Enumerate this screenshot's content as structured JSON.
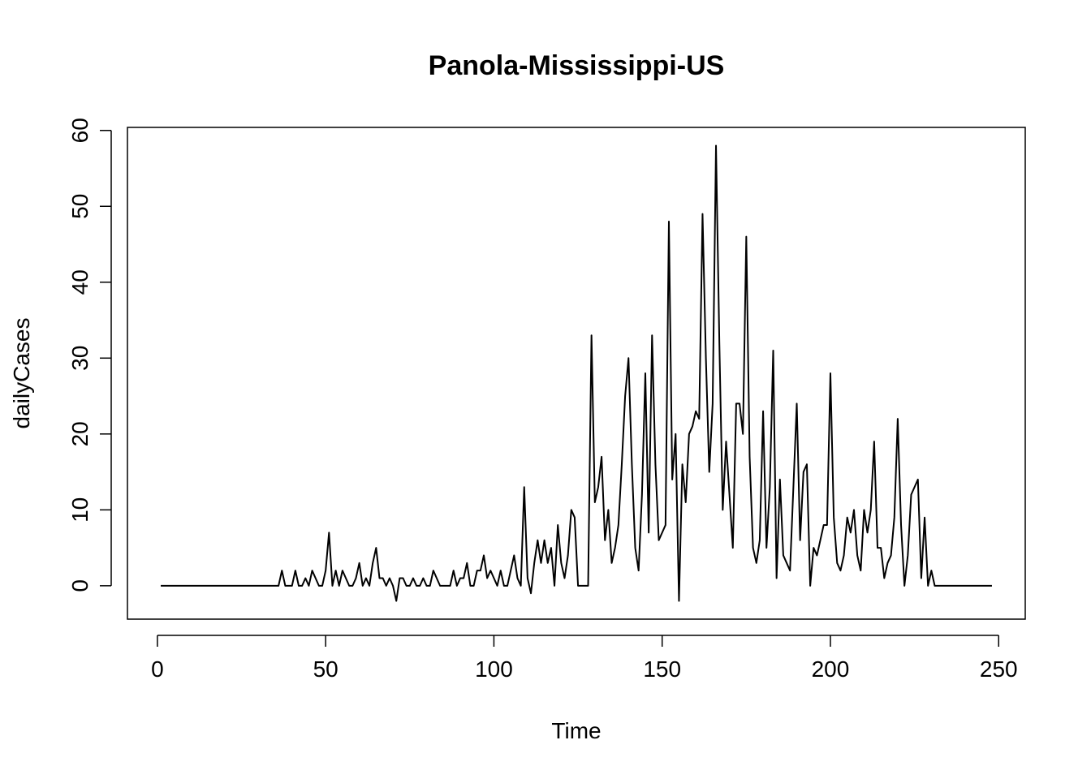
{
  "chart_data": {
    "type": "line",
    "title": "Panola-Mississippi-US",
    "xlabel": "Time",
    "ylabel": "dailyCases",
    "xlim": [
      -8.9,
      257.9
    ],
    "ylim": [
      -4.4,
      60.4
    ],
    "xticks": [
      0,
      50,
      100,
      150,
      200,
      250
    ],
    "yticks": [
      0,
      10,
      20,
      30,
      40,
      50,
      60
    ],
    "grid": false,
    "legend": "none",
    "line_color": "#000000",
    "x_start": 1,
    "series": [
      {
        "values": [
          0,
          0,
          0,
          0,
          0,
          0,
          0,
          0,
          0,
          0,
          0,
          0,
          0,
          0,
          0,
          0,
          0,
          0,
          0,
          0,
          0,
          0,
          0,
          0,
          0,
          0,
          0,
          0,
          0,
          0,
          0,
          0,
          0,
          0,
          0,
          0,
          2,
          0,
          0,
          0,
          2,
          0,
          0,
          1,
          0,
          2,
          1,
          0,
          0,
          2,
          7,
          0,
          2,
          0,
          2,
          1,
          0,
          0,
          1,
          3,
          0,
          1,
          0,
          3,
          5,
          1,
          1,
          0,
          1,
          0,
          -2,
          1,
          1,
          0,
          0,
          1,
          0,
          0,
          1,
          0,
          0,
          2,
          1,
          0,
          0,
          0,
          0,
          2,
          0,
          1,
          1,
          3,
          0,
          0,
          2,
          2,
          4,
          1,
          2,
          1,
          0,
          2,
          0,
          0,
          2,
          4,
          1,
          0,
          13,
          1,
          -1,
          3,
          6,
          3,
          6,
          3,
          5,
          0,
          8,
          3,
          1,
          4,
          10,
          9,
          0,
          0,
          0,
          0,
          33,
          11,
          13,
          17,
          6,
          10,
          3,
          5,
          8,
          16,
          25,
          30,
          16,
          5,
          2,
          12,
          28,
          7,
          33,
          16,
          6,
          7,
          8,
          48,
          14,
          20,
          -2,
          16,
          11,
          20,
          21,
          23,
          22,
          49,
          30,
          15,
          24,
          58,
          32,
          10,
          19,
          12,
          5,
          24,
          24,
          20,
          46,
          17,
          5,
          3,
          6,
          23,
          5,
          13,
          31,
          1,
          14,
          4,
          3,
          2,
          13,
          24,
          6,
          15,
          16,
          0,
          5,
          4,
          6,
          8,
          8,
          28,
          9,
          3,
          2,
          4,
          9,
          7,
          10,
          4,
          2,
          10,
          7,
          10,
          19,
          5,
          5,
          1,
          3,
          4,
          9,
          22,
          8,
          0,
          4,
          12,
          13,
          14,
          1,
          9,
          0,
          2,
          0,
          0,
          0,
          0,
          0,
          0,
          0,
          0,
          0,
          0,
          0,
          0,
          0,
          0,
          0,
          0,
          0,
          0
        ]
      }
    ]
  }
}
